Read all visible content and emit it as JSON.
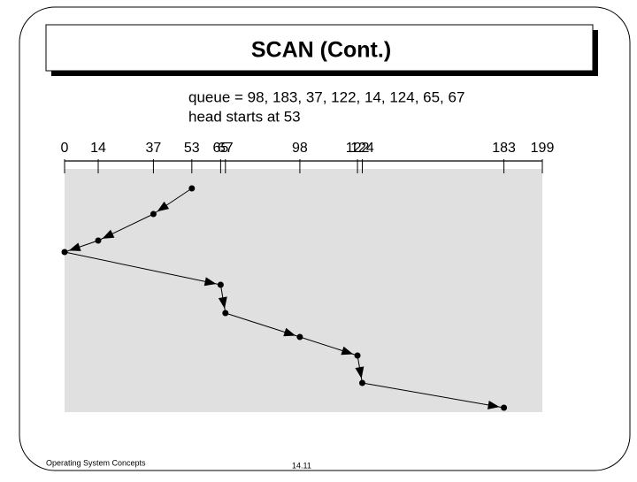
{
  "title": "SCAN (Cont.)",
  "queue_text": "queue = 98, 183, 37, 122, 14, 124, 65, 67",
  "head_text": "head starts at 53",
  "scale": {
    "min": 0,
    "max": 199,
    "ticks": [
      0,
      14,
      37,
      53,
      65,
      67,
      98,
      122,
      124,
      183,
      199
    ]
  },
  "head_path": [
    53,
    37,
    14,
    0,
    65,
    67,
    98,
    122,
    124,
    183
  ],
  "footer": {
    "left": "Operating System Concepts",
    "page": "14.11"
  }
}
